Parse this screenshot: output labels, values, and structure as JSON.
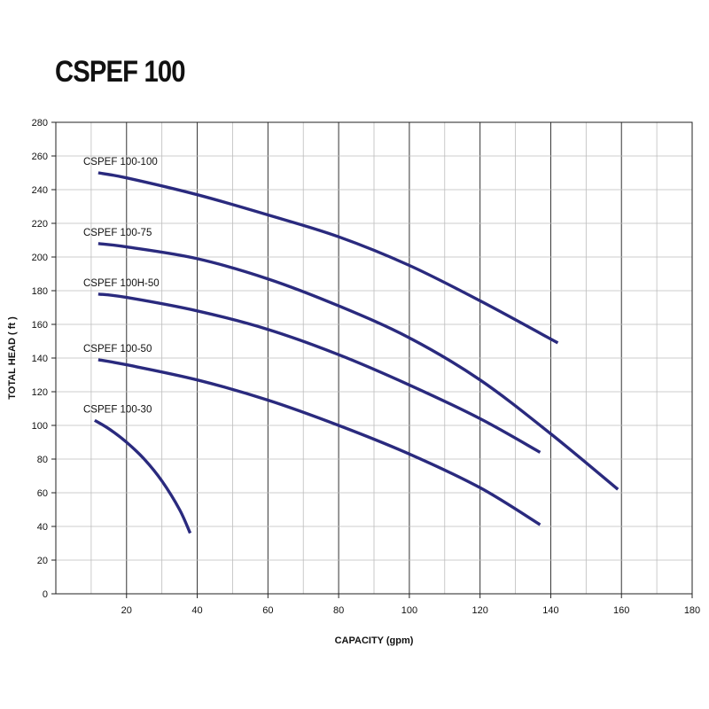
{
  "chart_data": {
    "type": "line",
    "title": "CSPEF 100",
    "xlabel": "CAPACITY (gpm)",
    "ylabel": "TOTAL HEAD ( ft )",
    "xlim": [
      0,
      180
    ],
    "ylim": [
      0,
      280
    ],
    "x_ticks": [
      20,
      40,
      60,
      80,
      100,
      120,
      140,
      160,
      180
    ],
    "y_ticks": [
      0,
      20,
      40,
      60,
      80,
      100,
      120,
      140,
      160,
      180,
      200,
      220,
      240,
      260,
      280
    ],
    "grid": true,
    "line_color": "#2a2a7e",
    "series": [
      {
        "name": "CSPEF 100-100",
        "x": [
          12,
          20,
          40,
          60,
          80,
          100,
          120,
          142
        ],
        "y": [
          250,
          247,
          237,
          225,
          212,
          195,
          174,
          149
        ]
      },
      {
        "name": "CSPEF 100-75",
        "x": [
          12,
          20,
          40,
          60,
          80,
          100,
          120,
          140,
          159
        ],
        "y": [
          208,
          206,
          199,
          187,
          171,
          152,
          127,
          95,
          62
        ]
      },
      {
        "name": "CSPEF 100H-50",
        "x": [
          12,
          20,
          40,
          60,
          80,
          100,
          120,
          137
        ],
        "y": [
          178,
          176,
          168,
          157,
          142,
          124,
          104,
          84
        ]
      },
      {
        "name": "CSPEF 100-50",
        "x": [
          12,
          20,
          40,
          60,
          80,
          100,
          120,
          137
        ],
        "y": [
          139,
          136,
          127,
          115,
          100,
          83,
          63,
          41
        ]
      },
      {
        "name": "CSPEF 100-30",
        "x": [
          11,
          15,
          20,
          25,
          30,
          35,
          38
        ],
        "y": [
          103,
          98,
          90,
          80,
          67,
          50,
          36
        ]
      }
    ]
  }
}
